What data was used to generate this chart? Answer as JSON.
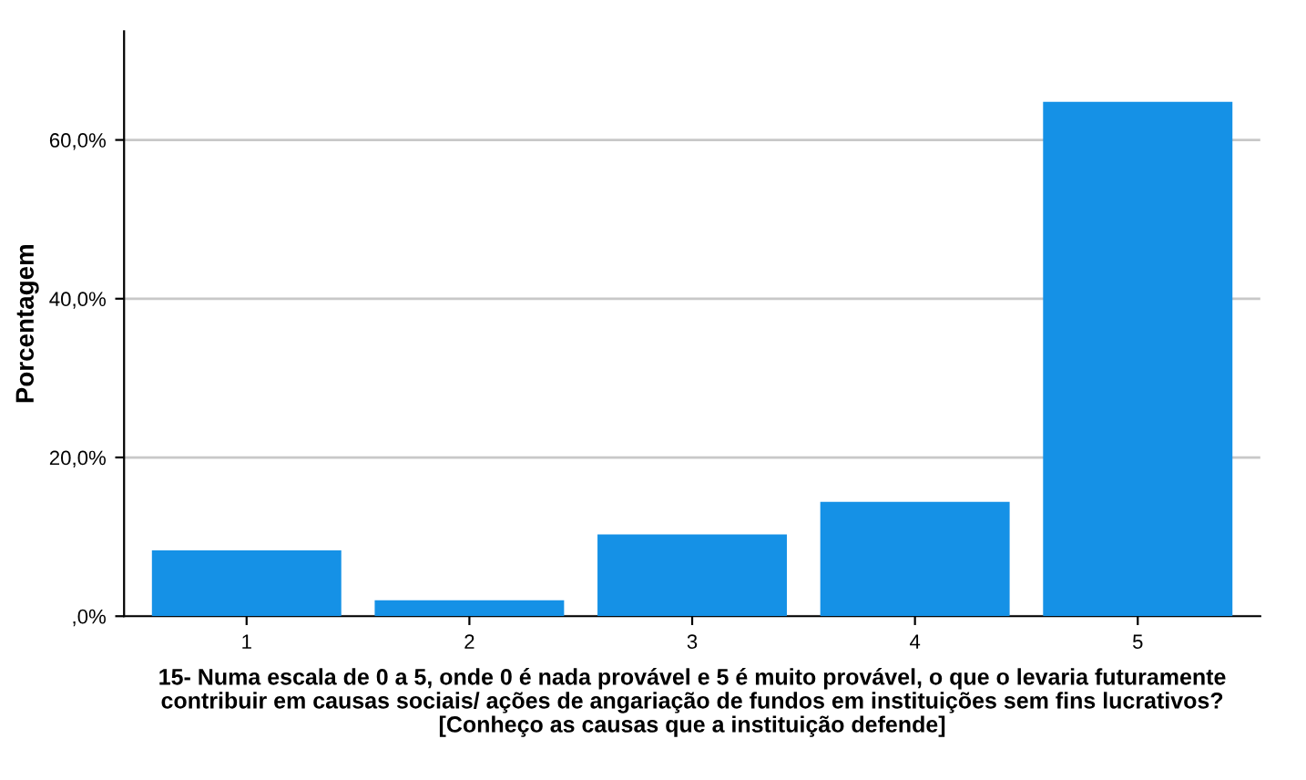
{
  "chart_data": {
    "type": "bar",
    "categories": [
      "1",
      "2",
      "3",
      "4",
      "5"
    ],
    "values": [
      8.3,
      2.0,
      10.3,
      14.4,
      64.8
    ],
    "color": "#1591e6",
    "ylabel": "Porcentagem",
    "xlabel": "15- Numa escala de 0 a 5, onde 0 é nada provável e 5 é muito provável, o que o levaria futuramente\ncontribuir em causas sociais/ ações de angariação de fundos em instituições sem fins lucrativos?\n[Conheço as causas que a instituição defende]",
    "ylim": [
      0,
      73.7
    ],
    "yticks": [
      {
        "value": 0,
        "label": ",0%"
      },
      {
        "value": 20,
        "label": "20,0%"
      },
      {
        "value": 40,
        "label": "40,0%"
      },
      {
        "value": 60,
        "label": "60,0%"
      }
    ],
    "grid": "y"
  }
}
